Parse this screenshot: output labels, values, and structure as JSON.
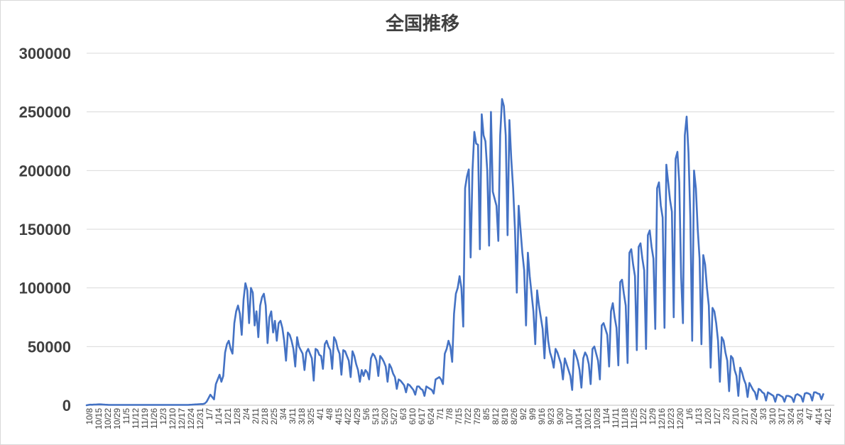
{
  "chart_data": {
    "type": "line",
    "title": "全国推移",
    "xlabel": "",
    "ylabel": "",
    "ylim": [
      0,
      300000
    ],
    "yticks": [
      0,
      50000,
      100000,
      150000,
      200000,
      250000,
      300000
    ],
    "grid": true,
    "legend": "none",
    "color": "#4472c4",
    "tick_labels": [
      "10/8",
      "10/15",
      "10/22",
      "10/29",
      "11/5",
      "11/12",
      "11/19",
      "11/26",
      "12/3",
      "12/10",
      "12/17",
      "12/24",
      "12/31",
      "1/7",
      "1/14",
      "1/21",
      "1/28",
      "2/4",
      "2/11",
      "2/18",
      "2/25",
      "3/4",
      "3/11",
      "3/18",
      "3/25",
      "4/1",
      "4/8",
      "4/15",
      "4/22",
      "4/29",
      "5/6",
      "5/13",
      "5/20",
      "5/27",
      "6/3",
      "6/10",
      "6/17",
      "6/24",
      "7/1",
      "7/8",
      "7/15",
      "7/22",
      "7/29",
      "8/5",
      "8/12",
      "8/19",
      "8/26",
      "9/2",
      "9/9",
      "9/16",
      "9/23",
      "9/30",
      "10/7",
      "10/14",
      "10/21",
      "10/28",
      "11/4",
      "11/11",
      "11/18",
      "11/25",
      "12/2",
      "12/9",
      "12/16",
      "12/23",
      "12/30",
      "1/6",
      "1/13",
      "1/20",
      "1/27",
      "2/3",
      "2/10",
      "2/17",
      "2/24",
      "3/3",
      "3/10",
      "3/17",
      "3/24",
      "3/31",
      "4/7",
      "4/14",
      "4/21"
    ],
    "series": [
      {
        "interval_days": 7,
        "weekly_points": [
          [
            0,
            300,
            500,
            400,
            600
          ],
          [
            600,
            700,
            800,
            700,
            600
          ],
          [
            500,
            400,
            300,
            300,
            300
          ],
          [
            300,
            300,
            300,
            300,
            300
          ],
          [
            300,
            300,
            300,
            300,
            300
          ],
          [
            300,
            300,
            300,
            300,
            300
          ],
          [
            300,
            300,
            300,
            300,
            300
          ],
          [
            300,
            300,
            300,
            300,
            300
          ],
          [
            300,
            300,
            300,
            300,
            300
          ],
          [
            300,
            300,
            300,
            300,
            300
          ],
          [
            300,
            300,
            300,
            300,
            300
          ],
          [
            300,
            400,
            500,
            600,
            700
          ],
          [
            800,
            900,
            1000,
            1000,
            1500
          ],
          [
            3000,
            6000,
            9000,
            7000,
            5000
          ],
          [
            18000,
            22000,
            26000,
            20000,
            25000
          ],
          [
            45000,
            52000,
            55000,
            48000,
            44000
          ],
          [
            70000,
            80000,
            85000,
            78000,
            60000
          ],
          [
            90000,
            104000,
            98000,
            70000,
            100000
          ],
          [
            96000,
            68000,
            80000,
            58000,
            85000
          ],
          [
            92000,
            95000,
            85000,
            53000,
            75000
          ],
          [
            80000,
            62000,
            72000,
            55000,
            70000
          ],
          [
            72000,
            66000,
            55000,
            38000,
            62000
          ],
          [
            60000,
            55000,
            48000,
            33000,
            58000
          ],
          [
            50000,
            47000,
            44000,
            30000,
            45000
          ],
          [
            48000,
            44000,
            40000,
            21000,
            48000
          ],
          [
            47000,
            43000,
            42000,
            31000,
            52000
          ],
          [
            55000,
            50000,
            47000,
            31000,
            58000
          ],
          [
            55000,
            48000,
            44000,
            26000,
            47000
          ],
          [
            46000,
            42000,
            38000,
            24000,
            46000
          ],
          [
            42000,
            35000,
            30000,
            20000,
            30000
          ],
          [
            25000,
            30000,
            28000,
            22000,
            40000
          ],
          [
            44000,
            42000,
            38000,
            25000,
            42000
          ],
          [
            40000,
            37000,
            33000,
            20000,
            35000
          ],
          [
            32000,
            27000,
            24000,
            14000,
            22000
          ],
          [
            21000,
            19000,
            17000,
            11000,
            18000
          ],
          [
            17000,
            15000,
            13000,
            9000,
            16000
          ],
          [
            16000,
            14000,
            13000,
            8000,
            16000
          ],
          [
            15000,
            14000,
            13000,
            10000,
            22000
          ],
          [
            23000,
            24000,
            22000,
            18000,
            44000
          ],
          [
            48000,
            55000,
            50000,
            37000,
            78000
          ],
          [
            95000,
            100000,
            110000,
            100000,
            67000
          ],
          [
            185000,
            195000,
            201000,
            126000,
            200000
          ],
          [
            233000,
            223000,
            222000,
            133000,
            248000
          ],
          [
            230000,
            225000,
            200000,
            136000,
            250000
          ],
          [
            182000,
            176000,
            170000,
            140000,
            230000
          ],
          [
            261000,
            255000,
            230000,
            145000,
            243000
          ],
          [
            210000,
            185000,
            150000,
            96000,
            170000
          ],
          [
            150000,
            130000,
            115000,
            68000,
            130000
          ],
          [
            110000,
            95000,
            80000,
            52000,
            98000
          ],
          [
            85000,
            75000,
            65000,
            40000,
            75000
          ],
          [
            55000,
            45000,
            40000,
            32000,
            48000
          ],
          [
            45000,
            40000,
            35000,
            22000,
            40000
          ],
          [
            35000,
            30000,
            25000,
            13000,
            47000
          ],
          [
            43000,
            38000,
            30000,
            15000,
            40000
          ],
          [
            45000,
            42000,
            35000,
            18000,
            48000
          ],
          [
            50000,
            44000,
            38000,
            22000,
            68000
          ],
          [
            70000,
            65000,
            60000,
            33000,
            80000
          ],
          [
            87000,
            75000,
            66000,
            34000,
            105000
          ],
          [
            107000,
            95000,
            85000,
            36000,
            130000
          ],
          [
            133000,
            120000,
            110000,
            47000,
            135000
          ],
          [
            138000,
            125000,
            115000,
            48000,
            145000
          ],
          [
            149000,
            135000,
            125000,
            65000,
            185000
          ],
          [
            190000,
            170000,
            160000,
            66000,
            205000
          ],
          [
            190000,
            175000,
            165000,
            75000,
            210000
          ],
          [
            216000,
            190000,
            110000,
            70000,
            230000
          ],
          [
            246000,
            215000,
            160000,
            55000,
            200000
          ],
          [
            185000,
            150000,
            125000,
            52000,
            128000
          ],
          [
            120000,
            100000,
            85000,
            32000,
            83000
          ],
          [
            80000,
            70000,
            55000,
            20000,
            58000
          ],
          [
            55000,
            45000,
            38000,
            12000,
            42000
          ],
          [
            40000,
            30000,
            25000,
            8000,
            32000
          ],
          [
            28000,
            22000,
            18000,
            7000,
            19000
          ],
          [
            16000,
            13000,
            11000,
            5000,
            14000
          ],
          [
            13000,
            11000,
            10000,
            4000,
            11000
          ],
          [
            10000,
            9000,
            8000,
            3000,
            9000
          ],
          [
            9000,
            8000,
            7000,
            3000,
            8000
          ],
          [
            8000,
            7500,
            6500,
            2800,
            8500
          ],
          [
            9500,
            8500,
            7500,
            3000,
            10000
          ],
          [
            10500,
            10000,
            9000,
            4000,
            11000
          ],
          [
            11000,
            10000,
            9500,
            5000,
            9500
          ]
        ]
      }
    ]
  }
}
